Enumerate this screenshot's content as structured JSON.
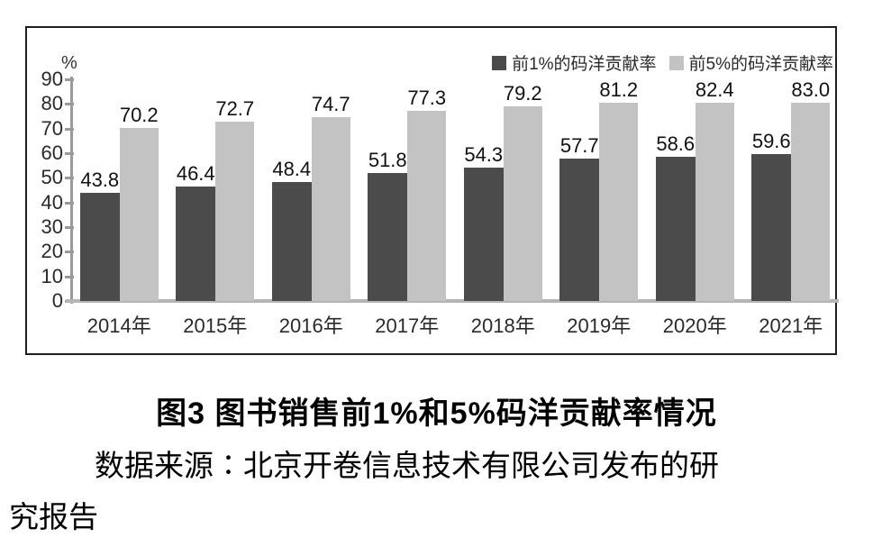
{
  "chart_data": {
    "type": "bar",
    "title": "",
    "unit_label": "%",
    "categories": [
      "2014年",
      "2015年",
      "2016年",
      "2017年",
      "2018年",
      "2019年",
      "2020年",
      "2021年"
    ],
    "series": [
      {
        "name": "前1%的码洋贡献率",
        "color": "#4b4b4b",
        "values": [
          43.8,
          46.4,
          48.4,
          51.8,
          54.3,
          57.7,
          58.6,
          59.6
        ]
      },
      {
        "name": "前5%的码洋贡献率",
        "color": "#c3c3c3",
        "values": [
          70.2,
          72.7,
          74.7,
          77.3,
          79.2,
          81.2,
          82.4,
          83.0
        ]
      }
    ],
    "ylim": [
      0,
      90
    ],
    "yticks": [
      0,
      10,
      20,
      30,
      40,
      50,
      60,
      70,
      80,
      90
    ],
    "legend_position": "top-right",
    "grid": false,
    "bar_value_labels": true
  },
  "caption": "图3 图书销售前1%和5%码洋贡献率情况",
  "source": {
    "line1": "数据来源∶北京开卷信息技术有限公司发布的研",
    "line2": "究报告"
  }
}
